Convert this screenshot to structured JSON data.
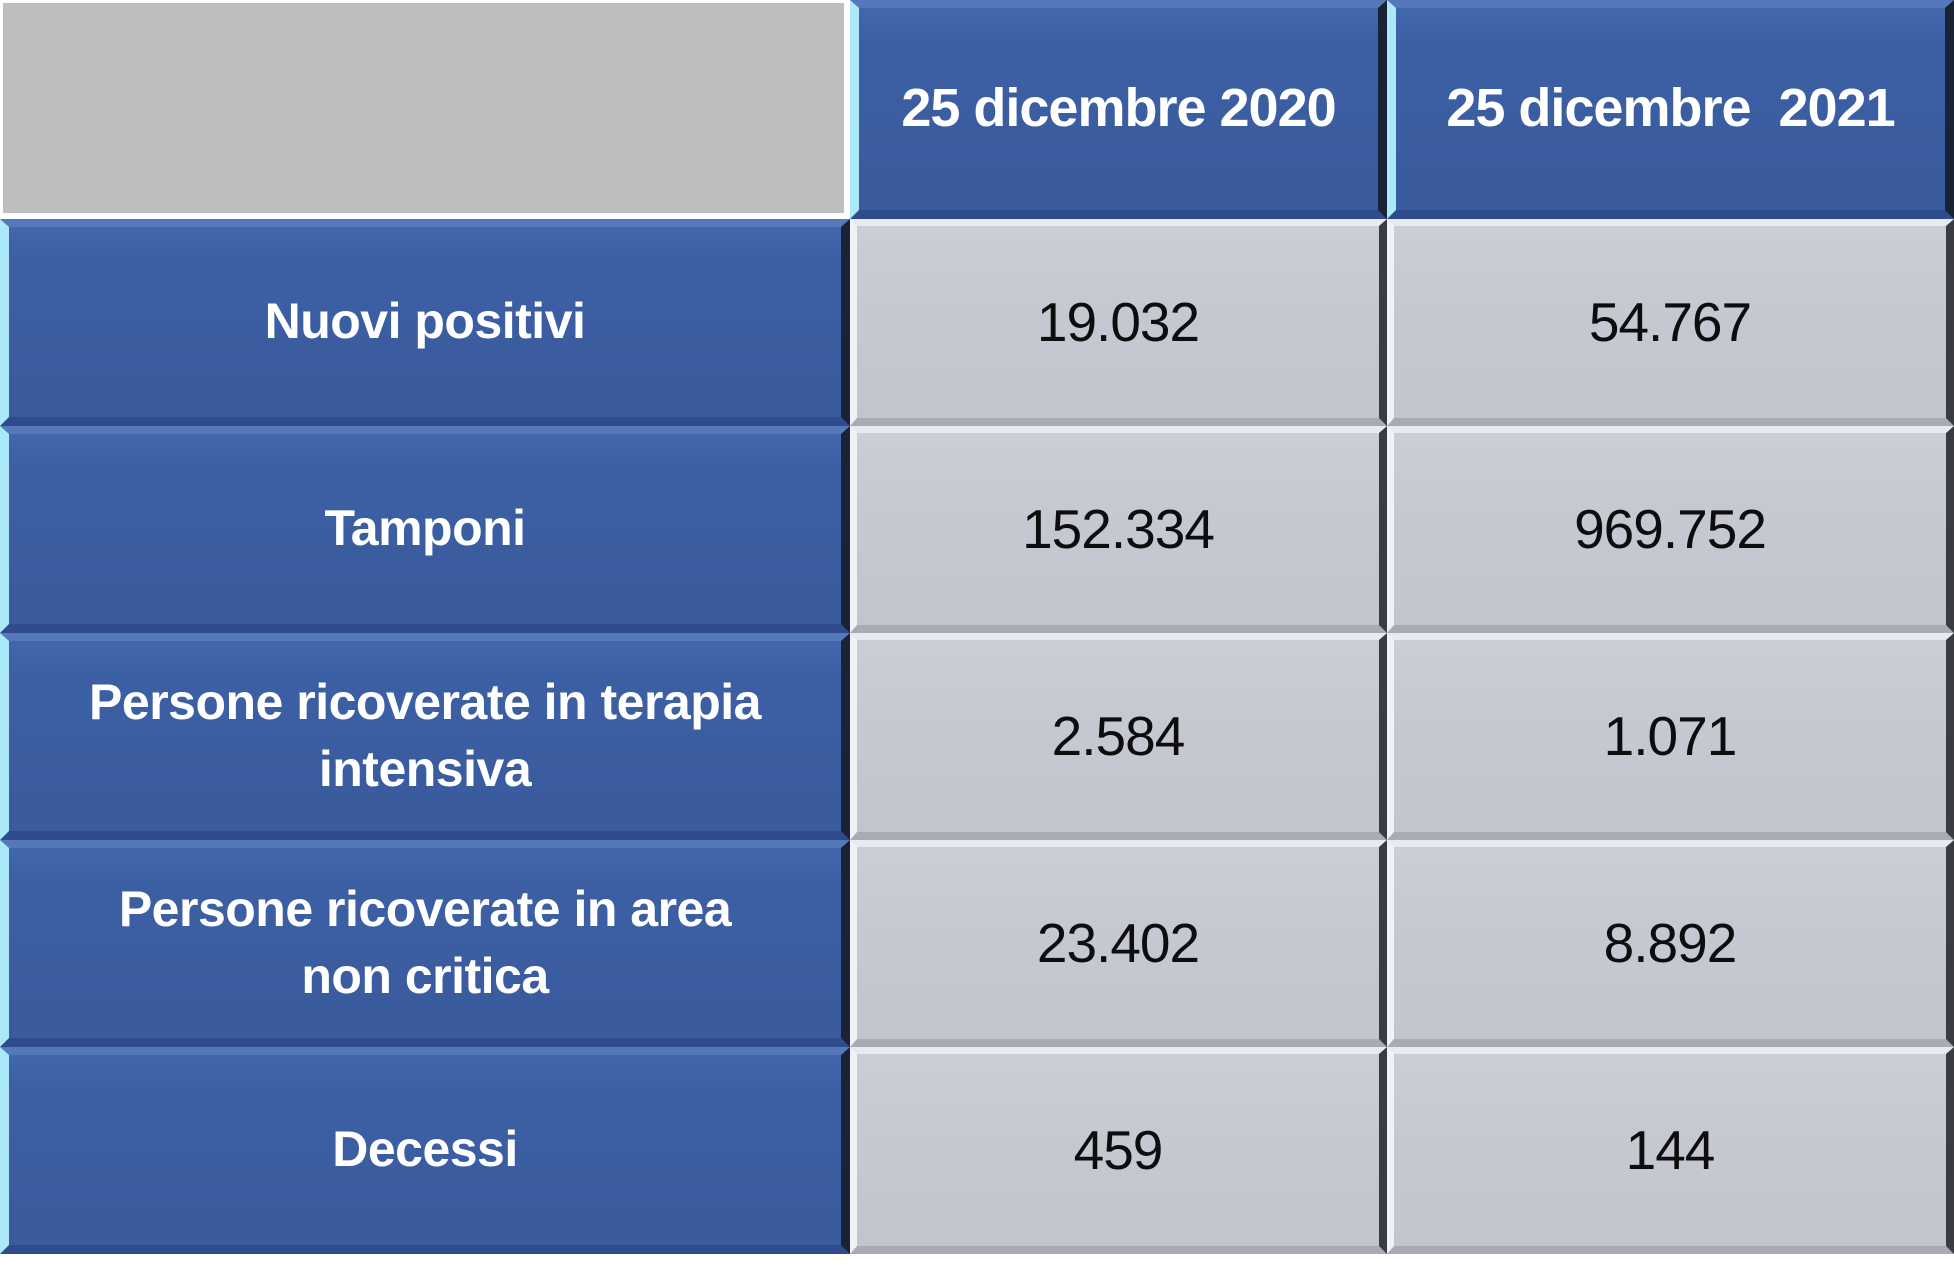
{
  "table": {
    "header": {
      "corner": "",
      "col2020": "25 dicembre 2020",
      "col2021": "25 dicembre  2021"
    },
    "rows": [
      {
        "label": "Nuovi positivi",
        "values": [
          "19.032",
          "54.767"
        ]
      },
      {
        "label": "Tamponi",
        "values": [
          "152.334",
          "969.752"
        ]
      },
      {
        "label": "Persone ricoverate in terapia\nintensiva",
        "values": [
          "2.584",
          "1.071"
        ]
      },
      {
        "label": "Persone ricoverate in area\nnon critica",
        "values": [
          "23.402",
          "8.892"
        ]
      },
      {
        "label": "Decessi",
        "values": [
          "459",
          "144"
        ]
      }
    ]
  },
  "colors": {
    "blue_cell": "#3c5fa4",
    "blue_bevel_top": "#5578ba",
    "blue_bevel_left_cyan": "#abe9f8",
    "blue_bevel_right_dark": "#1a2336",
    "blue_bevel_bottom": "#2e4c8d",
    "gray_value_cell": "#c6c9d1",
    "gray_bevel_top": "#e6eaf3",
    "gray_bevel_right_dark": "#3a3c42",
    "gray_bevel_bottom": "#a8abb3",
    "corner_gray": "#bebebe",
    "label_text": "#ffffff",
    "value_text": "#0d0d0f",
    "page_background": "#ffffff"
  },
  "chart_data": {
    "type": "table",
    "title": "",
    "columns": [
      "",
      "25 dicembre 2020",
      "25 dicembre  2021"
    ],
    "categories": [
      "Nuovi positivi",
      "Tamponi",
      "Persone ricoverate in terapia intensiva",
      "Persone ricoverate in area non critica",
      "Decessi"
    ],
    "series": [
      {
        "name": "25 dicembre 2020",
        "values": [
          19032,
          152334,
          2584,
          23402,
          459
        ]
      },
      {
        "name": "25 dicembre  2021",
        "values": [
          54767,
          969752,
          1071,
          8892,
          144
        ]
      }
    ],
    "display_values": [
      [
        "19.032",
        "54.767"
      ],
      [
        "152.334",
        "969.752"
      ],
      [
        "2.584",
        "1.071"
      ],
      [
        "23.402",
        "8.892"
      ],
      [
        "459",
        "144"
      ]
    ],
    "number_format": "italian thousands separator (dot)"
  }
}
